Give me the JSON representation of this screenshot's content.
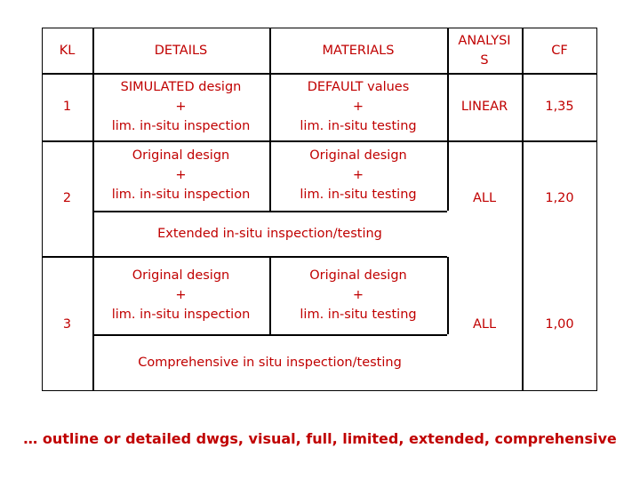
{
  "header": {
    "kl": "KL",
    "details": "DETAILS",
    "materials": "MATERIALS",
    "analysis_line1": "ANALYSI",
    "analysis_line2": "S",
    "cf": "CF"
  },
  "rows": [
    {
      "kl": "1",
      "details": [
        "SIMULATED design",
        "+",
        "lim. in-situ inspection"
      ],
      "materials": [
        "DEFAULT values",
        "+",
        "lim. in-situ testing"
      ],
      "analysis": "LINEAR",
      "cf": "1,35"
    },
    {
      "kl": "2",
      "details": [
        "Original design",
        "+",
        "lim. in-situ inspection"
      ],
      "materials": [
        "Original design",
        "+",
        "lim. in-situ testing"
      ],
      "extra": "Extended in-situ inspection/testing",
      "analysis": "ALL",
      "cf": "1,20"
    },
    {
      "kl": "3",
      "details": [
        "Original design",
        "+",
        "lim. in-situ inspection"
      ],
      "materials": [
        "Original design",
        "+",
        "lim. in-situ testing"
      ],
      "extra": "Comprehensive in situ inspection/testing",
      "analysis": "ALL",
      "cf": "1,00"
    }
  ],
  "footnote": "… outline or detailed dwgs, visual, full, limited, extended, comprehensive",
  "colors": {
    "text": "#c00000",
    "lines": "#000000"
  }
}
